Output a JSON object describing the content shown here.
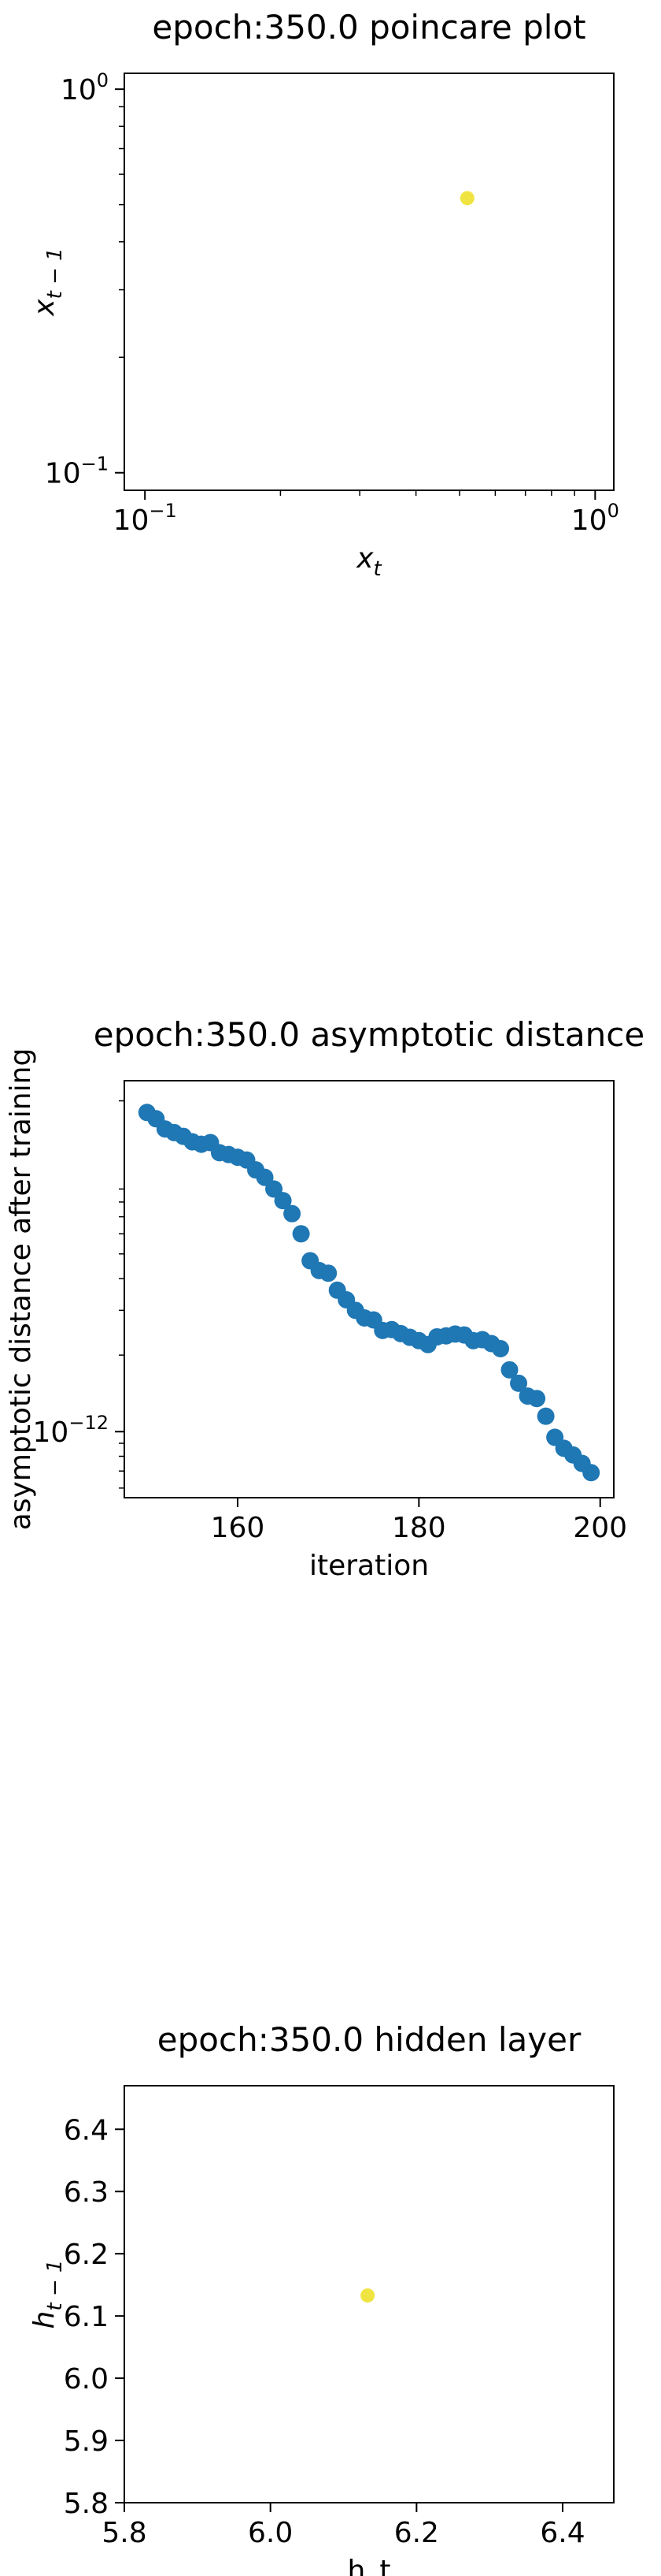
{
  "chart_data": [
    {
      "type": "scatter",
      "title": "epoch:350.0 poincare plot",
      "xlabel": "x",
      "xlabel_sub": "t",
      "ylabel": "x",
      "ylabel_sub": "t − 1",
      "xscale": "log",
      "yscale": "log",
      "xlim": [
        0.09,
        1.1
      ],
      "ylim": [
        0.09,
        1.1
      ],
      "x_ticks": [
        0.1,
        1.0
      ],
      "x_tick_labels": [
        {
          "base": "10",
          "exp": "−1"
        },
        {
          "base": "10",
          "exp": "0"
        }
      ],
      "y_ticks": [
        0.1,
        1.0
      ],
      "y_tick_labels": [
        {
          "base": "10",
          "exp": "−1"
        },
        {
          "base": "10",
          "exp": "0"
        }
      ],
      "grid": false,
      "color": "#f0e442",
      "points": [
        {
          "x": 0.52,
          "y": 0.52
        }
      ]
    },
    {
      "type": "scatter",
      "title": "epoch:350.0 asymptotic distance",
      "xlabel": "iteration",
      "ylabel": "asymptotic distance after training",
      "xscale": "linear",
      "yscale": "log",
      "xlim": [
        147.5,
        201.5
      ],
      "ylim": [
        5.5e-13,
        2.4e-11
      ],
      "x_ticks": [
        160,
        180,
        200
      ],
      "x_tick_labels": [
        "160",
        "180",
        "200"
      ],
      "y_ticks": [
        1e-12
      ],
      "y_tick_labels": [
        {
          "base": "10",
          "exp": "−12"
        }
      ],
      "grid": false,
      "color": "#1f77b4",
      "x": [
        150,
        151,
        152,
        153,
        154,
        155,
        156,
        157,
        158,
        159,
        160,
        161,
        162,
        163,
        164,
        165,
        166,
        167,
        168,
        169,
        170,
        171,
        172,
        173,
        174,
        175,
        176,
        177,
        178,
        179,
        180,
        181,
        182,
        183,
        184,
        185,
        186,
        187,
        188,
        189,
        190,
        191,
        192,
        193,
        194,
        195,
        196,
        197,
        198,
        199
      ],
      "y": [
        1.8e-11,
        1.7e-11,
        1.55e-11,
        1.5e-11,
        1.45e-11,
        1.38e-11,
        1.35e-11,
        1.37e-11,
        1.25e-11,
        1.23e-11,
        1.2e-11,
        1.17e-11,
        1.07e-11,
        1e-11,
        9e-12,
        8.1e-12,
        7.2e-12,
        6e-12,
        4.7e-12,
        4.3e-12,
        4.2e-12,
        3.6e-12,
        3.3e-12,
        3e-12,
        2.8e-12,
        2.75e-12,
        2.5e-12,
        2.52e-12,
        2.43e-12,
        2.35e-12,
        2.28e-12,
        2.2e-12,
        2.36e-12,
        2.38e-12,
        2.42e-12,
        2.4e-12,
        2.28e-12,
        2.3e-12,
        2.22e-12,
        2.12e-12,
        1.75e-12,
        1.55e-12,
        1.38e-12,
        1.35e-12,
        1.15e-12,
        9.5e-13,
        8.6e-13,
        8.1e-13,
        7.5e-13,
        6.9e-13
      ]
    },
    {
      "type": "scatter",
      "title": "epoch:350.0 hidden layer",
      "xlabel": "h_t",
      "ylabel": "h",
      "ylabel_sub": "t − 1",
      "xscale": "linear",
      "yscale": "linear",
      "xlim": [
        5.8,
        6.47
      ],
      "ylim": [
        5.8,
        6.47
      ],
      "x_ticks": [
        5.8,
        6.0,
        6.2,
        6.4
      ],
      "x_tick_labels": [
        "5.8",
        "6.0",
        "6.2",
        "6.4"
      ],
      "y_ticks": [
        5.8,
        5.9,
        6.0,
        6.1,
        6.2,
        6.3,
        6.4
      ],
      "y_tick_labels": [
        "5.8",
        "5.9",
        "6.0",
        "6.1",
        "6.2",
        "6.3",
        "6.4"
      ],
      "grid": false,
      "color": "#f0e442",
      "points": [
        {
          "x": 6.133,
          "y": 6.133
        }
      ]
    }
  ]
}
